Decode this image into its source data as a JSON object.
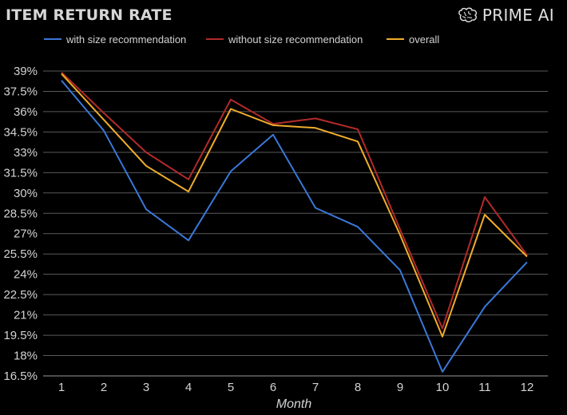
{
  "header": {
    "title": "ITEM RETURN RATE",
    "brand": "PRIME AI",
    "brand_icon": "brain-icon"
  },
  "chart_data": {
    "type": "line",
    "title": "ITEM RETURN RATE",
    "xlabel": "Month",
    "ylabel": "",
    "x": [
      1,
      2,
      3,
      4,
      5,
      6,
      7,
      8,
      9,
      10,
      11,
      12
    ],
    "yticks": [
      "16.5%",
      "18%",
      "19.5%",
      "21%",
      "22.5%",
      "24%",
      "25.5%",
      "27%",
      "28.5%",
      "30%",
      "31.5%",
      "33%",
      "34.5%",
      "36%",
      "37.5%",
      "39%"
    ],
    "ylim": [
      16.5,
      39
    ],
    "grid": true,
    "legend_position": "top",
    "series": [
      {
        "name": "with size recommendation",
        "color": "#3a78d8",
        "values": [
          38.3,
          34.6,
          28.8,
          26.5,
          31.6,
          34.3,
          28.9,
          27.5,
          24.3,
          16.8,
          21.6,
          24.9
        ]
      },
      {
        "name": "without size recommendation",
        "color": "#b22a2a",
        "values": [
          38.9,
          35.9,
          33.0,
          31.0,
          36.9,
          35.1,
          35.5,
          34.7,
          27.3,
          20.0,
          29.7,
          25.4
        ]
      },
      {
        "name": "overall",
        "color": "#f0ad2a",
        "values": [
          38.8,
          35.4,
          32.0,
          30.1,
          36.2,
          35.0,
          34.8,
          33.8,
          26.9,
          19.4,
          28.4,
          25.3
        ]
      }
    ]
  }
}
